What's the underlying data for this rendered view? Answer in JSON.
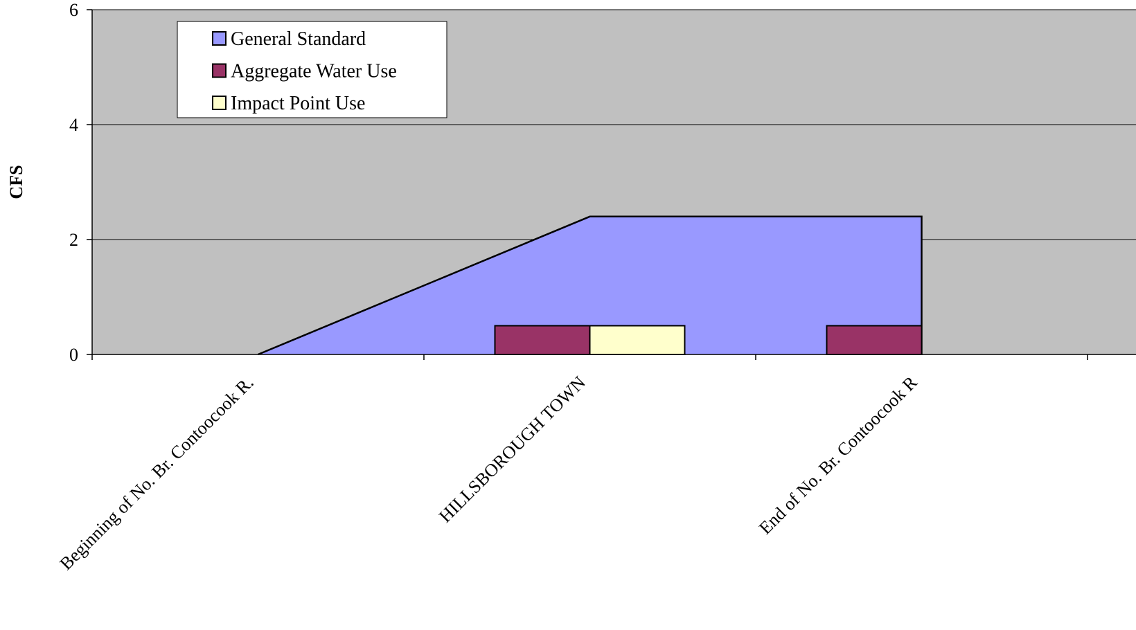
{
  "chart_data": {
    "type": "area",
    "title": "",
    "xlabel": "",
    "ylabel": "CFS",
    "ylim": [
      0,
      6
    ],
    "yticks": [
      0,
      2,
      4,
      6
    ],
    "grid": true,
    "legend_position": "top-left",
    "background_color": "#c0c0c0",
    "categories": [
      "Beginning of No. Br. Contoocook R.",
      "HILLSBOROUGH TOWN",
      "End of No. Br. Contoocook R"
    ],
    "series": [
      {
        "name": "General Standard",
        "type": "area",
        "color": "#9999ff",
        "points": [
          {
            "x": "Beginning of No. Br. Contoocook R.",
            "y": 0
          },
          {
            "x": "HILLSBOROUGH TOWN",
            "y": 2.4
          },
          {
            "x": "End of No. Br. Contoocook R",
            "y": 2.4
          }
        ]
      },
      {
        "name": "Aggregate Water Use",
        "type": "bar",
        "color": "#993366",
        "bars": [
          {
            "x": "HILLSBOROUGH TOWN",
            "y": 0.5
          },
          {
            "x": "End of No. Br. Contoocook R",
            "y": 0.5
          }
        ]
      },
      {
        "name": "Impact Point Use",
        "type": "bar",
        "color": "#ffffcc",
        "bars": [
          {
            "x": "HILLSBOROUGH TOWN",
            "y": 0.5
          }
        ]
      }
    ]
  }
}
